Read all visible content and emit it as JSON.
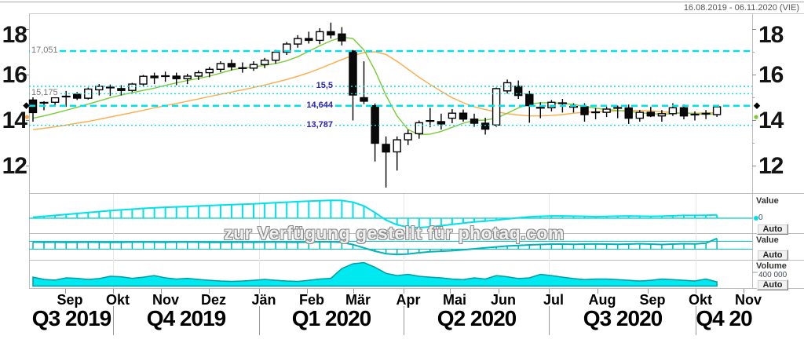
{
  "header": {
    "date_range": "16.08.2019 - 06.11.2020 (VIE)"
  },
  "watermark": "zur Verfügung gestellt für photaq.com",
  "panels": {
    "indicator1": {
      "label": "Value",
      "current": "0",
      "button": "Auto"
    },
    "indicator2": {
      "label": "Value",
      "button": "Auto"
    },
    "volume": {
      "label": "Volume",
      "gridline": "400 000",
      "button": "Auto"
    }
  },
  "colors": {
    "accent_cyan": "#00e1ea",
    "indicator2_teal": "#00b4b8",
    "volume_fill": "#00e8f0",
    "volume_stroke": "#009ea4",
    "ma_short_green": "#77cc33",
    "ma_long_orange": "#ffaa44",
    "label_blue": "#2323bb",
    "label_gray": "#7a7a7a",
    "grid": "#c9c9c9"
  },
  "chart_data": {
    "type": "candlestick",
    "title": "",
    "date_range": "16.08.2019 - 06.11.2020",
    "exchange": "VIE",
    "current_price": 14.644,
    "price_axis": {
      "ticks": [
        "18",
        "16",
        "14",
        "12"
      ],
      "tick_values": [
        18,
        16,
        14,
        12
      ],
      "minor_tick_values": [
        17,
        15,
        13
      ]
    },
    "price_lines": [
      {
        "label": "17,051",
        "value": 17.051,
        "style": "bold",
        "side": "left",
        "color": "gray"
      },
      {
        "label": "15,5",
        "value": 15.5,
        "style": "dot",
        "side": "mid",
        "color": "blue"
      },
      {
        "label": "15,175",
        "value": 15.175,
        "style": "dot",
        "side": "left",
        "color": "gray"
      },
      {
        "label": "14,644",
        "value": 14.644,
        "style": "bold",
        "side": "mid",
        "color": "blue"
      },
      {
        "label": "13,787",
        "value": 13.787,
        "style": "dot",
        "side": "mid",
        "color": "blue"
      }
    ],
    "months": [
      "Sep",
      "Okt",
      "Nov",
      "Dez",
      "Jän",
      "Feb",
      "Mär",
      "Apr",
      "Mai",
      "Jun",
      "Jul",
      "Aug",
      "Sep",
      "Okt",
      "Nov"
    ],
    "quarters": [
      "Q3 2019",
      "Q4 2019",
      "Q1 2020",
      "Q2 2020",
      "Q3 2020",
      "Q4 20"
    ],
    "candles": [
      [
        14.9,
        15.05,
        13.95,
        14.35
      ],
      [
        14.8,
        14.85,
        14.45,
        14.78
      ],
      [
        14.8,
        15.1,
        14.6,
        15.0
      ],
      [
        15.0,
        15.3,
        14.6,
        15.05
      ],
      [
        15.15,
        15.25,
        14.9,
        14.98
      ],
      [
        14.98,
        15.45,
        14.92,
        15.38
      ],
      [
        15.35,
        15.6,
        15.1,
        15.5
      ],
      [
        15.5,
        15.58,
        15.08,
        15.45
      ],
      [
        15.4,
        15.55,
        15.1,
        15.32
      ],
      [
        15.32,
        15.65,
        15.25,
        15.6
      ],
      [
        15.6,
        16.0,
        15.5,
        15.94
      ],
      [
        15.95,
        16.1,
        15.6,
        15.88
      ],
      [
        15.9,
        16.15,
        15.7,
        15.95
      ],
      [
        15.95,
        16.1,
        15.55,
        15.84
      ],
      [
        15.84,
        16.05,
        15.6,
        15.95
      ],
      [
        15.95,
        16.2,
        15.78,
        16.1
      ],
      [
        16.1,
        16.35,
        15.9,
        16.25
      ],
      [
        16.25,
        16.6,
        16.12,
        16.5
      ],
      [
        16.5,
        16.68,
        16.2,
        16.36
      ],
      [
        16.36,
        16.55,
        16.1,
        16.3
      ],
      [
        16.3,
        16.6,
        16.18,
        16.46
      ],
      [
        16.46,
        16.75,
        16.3,
        16.65
      ],
      [
        16.65,
        17.1,
        16.5,
        17.0
      ],
      [
        17.0,
        17.45,
        16.88,
        17.36
      ],
      [
        17.36,
        17.75,
        17.2,
        17.6
      ],
      [
        17.6,
        17.9,
        17.38,
        17.52
      ],
      [
        17.52,
        18.05,
        17.35,
        17.9
      ],
      [
        17.9,
        18.3,
        17.6,
        17.76
      ],
      [
        17.8,
        18.1,
        17.3,
        17.5
      ],
      [
        17.05,
        17.1,
        14.0,
        15.12
      ],
      [
        15.0,
        16.6,
        14.72,
        14.85
      ],
      [
        14.65,
        14.75,
        12.2,
        13.0
      ],
      [
        12.95,
        13.3,
        11.05,
        12.62
      ],
      [
        12.62,
        13.3,
        11.8,
        13.15
      ],
      [
        13.15,
        13.6,
        12.92,
        13.42
      ],
      [
        13.42,
        14.0,
        13.2,
        13.9
      ],
      [
        14.0,
        14.55,
        13.7,
        13.98
      ],
      [
        13.95,
        14.3,
        13.6,
        13.85
      ],
      [
        14.1,
        14.5,
        13.88,
        14.32
      ],
      [
        14.32,
        14.48,
        13.95,
        14.06
      ],
      [
        14.06,
        14.3,
        13.72,
        13.88
      ],
      [
        13.88,
        14.12,
        13.38,
        13.62
      ],
      [
        13.8,
        15.45,
        13.72,
        15.4
      ],
      [
        15.3,
        15.8,
        15.18,
        15.66
      ],
      [
        15.5,
        15.76,
        14.95,
        15.1
      ],
      [
        15.15,
        15.3,
        13.9,
        14.65
      ],
      [
        14.52,
        14.8,
        14.1,
        14.56
      ],
      [
        14.56,
        14.9,
        14.4,
        14.8
      ],
      [
        14.72,
        14.95,
        14.35,
        14.76
      ],
      [
        14.6,
        14.76,
        14.35,
        14.6
      ],
      [
        14.6,
        14.76,
        13.95,
        14.26
      ],
      [
        14.3,
        14.55,
        14.05,
        14.36
      ],
      [
        14.36,
        14.6,
        14.15,
        14.5
      ],
      [
        14.5,
        14.66,
        14.1,
        14.55
      ],
      [
        14.55,
        14.7,
        13.85,
        14.1
      ],
      [
        14.1,
        14.46,
        13.95,
        14.36
      ],
      [
        14.36,
        14.6,
        14.15,
        14.2
      ],
      [
        14.2,
        14.46,
        13.95,
        14.3
      ],
      [
        14.3,
        14.76,
        14.2,
        14.56
      ],
      [
        14.56,
        14.7,
        14.05,
        14.2
      ],
      [
        14.2,
        14.4,
        14.0,
        14.26
      ],
      [
        14.26,
        14.46,
        14.06,
        14.3
      ],
      [
        14.26,
        14.66,
        14.16,
        14.6
      ]
    ],
    "ma_short_green": [
      14.1,
      14.2,
      14.32,
      14.45,
      14.58,
      14.72,
      14.86,
      15.0,
      15.12,
      15.22,
      15.32,
      15.42,
      15.54,
      15.65,
      15.76,
      15.85,
      15.95,
      16.08,
      16.22,
      16.3,
      16.36,
      16.42,
      16.5,
      16.62,
      16.8,
      17.04,
      17.28,
      17.5,
      17.66,
      17.6,
      17.1,
      16.2,
      15.1,
      14.2,
      13.6,
      13.38,
      13.4,
      13.52,
      13.7,
      13.88,
      14.0,
      14.02,
      14.1,
      14.32,
      14.55,
      14.72,
      14.78,
      14.78,
      14.76,
      14.7,
      14.62,
      14.54,
      14.48,
      14.44,
      14.4,
      14.34,
      14.3,
      14.28,
      14.3,
      14.34,
      14.3,
      14.26,
      14.3
    ],
    "ma_long_orange": [
      13.6,
      13.66,
      13.72,
      13.8,
      13.88,
      13.96,
      14.05,
      14.15,
      14.25,
      14.35,
      14.45,
      14.55,
      14.65,
      14.75,
      14.85,
      14.95,
      15.05,
      15.15,
      15.25,
      15.35,
      15.45,
      15.56,
      15.68,
      15.8,
      15.94,
      16.1,
      16.28,
      16.48,
      16.68,
      16.85,
      16.98,
      17.02,
      16.9,
      16.6,
      16.25,
      15.9,
      15.58,
      15.28,
      15.0,
      14.78,
      14.6,
      14.48,
      14.38,
      14.3,
      14.24,
      14.2,
      14.2,
      14.22,
      14.26,
      14.32,
      14.36,
      14.38,
      14.4,
      14.42,
      14.44,
      14.44,
      14.42,
      14.38,
      14.35,
      14.32,
      14.32,
      14.33,
      14.35
    ],
    "indicator1_values": [
      0.05,
      0.1,
      0.15,
      0.2,
      0.25,
      0.3,
      0.35,
      0.4,
      0.44,
      0.48,
      0.52,
      0.55,
      0.58,
      0.6,
      0.62,
      0.65,
      0.67,
      0.7,
      0.72,
      0.74,
      0.76,
      0.79,
      0.82,
      0.85,
      0.88,
      0.91,
      0.93,
      0.95,
      0.94,
      0.85,
      0.65,
      0.3,
      -0.1,
      -0.35,
      -0.48,
      -0.5,
      -0.46,
      -0.4,
      -0.33,
      -0.26,
      -0.2,
      -0.16,
      -0.1,
      -0.04,
      0.02,
      0.07,
      0.1,
      0.12,
      0.12,
      0.11,
      0.1,
      0.08,
      0.09,
      0.11,
      0.12,
      0.11,
      0.1,
      0.11,
      0.13,
      0.15,
      0.15,
      0.16,
      0.18
    ],
    "indicator2_values": [
      0.72,
      0.7,
      0.71,
      0.69,
      0.7,
      0.72,
      0.7,
      0.68,
      0.7,
      0.72,
      0.73,
      0.71,
      0.7,
      0.72,
      0.73,
      0.71,
      0.69,
      0.68,
      0.7,
      0.71,
      0.7,
      0.72,
      0.73,
      0.71,
      0.7,
      0.72,
      0.74,
      0.75,
      0.68,
      0.45,
      0.1,
      -0.25,
      -0.52,
      -0.6,
      -0.55,
      -0.42,
      -0.32,
      -0.26,
      -0.2,
      -0.1,
      0.0,
      0.1,
      0.2,
      0.3,
      0.36,
      0.42,
      0.46,
      0.5,
      0.5,
      0.48,
      0.5,
      0.52,
      0.5,
      0.48,
      0.5,
      0.54,
      0.5,
      0.46,
      0.5,
      0.54,
      0.52,
      0.6,
      1.1
    ],
    "volume_thousands": [
      255,
      190,
      170,
      235,
      220,
      190,
      215,
      280,
      265,
      220,
      255,
      300,
      235,
      200,
      220,
      190,
      165,
      145,
      135,
      145,
      165,
      190,
      165,
      145,
      135,
      165,
      200,
      220,
      500,
      635,
      670,
      535,
      365,
      300,
      335,
      280,
      255,
      235,
      200,
      185,
      235,
      200,
      300,
      265,
      215,
      235,
      335,
      300,
      255,
      215,
      185,
      200,
      200,
      185,
      165,
      145,
      165,
      200,
      185,
      165,
      145,
      200,
      120
    ],
    "volume_axis_label_value": 400
  }
}
